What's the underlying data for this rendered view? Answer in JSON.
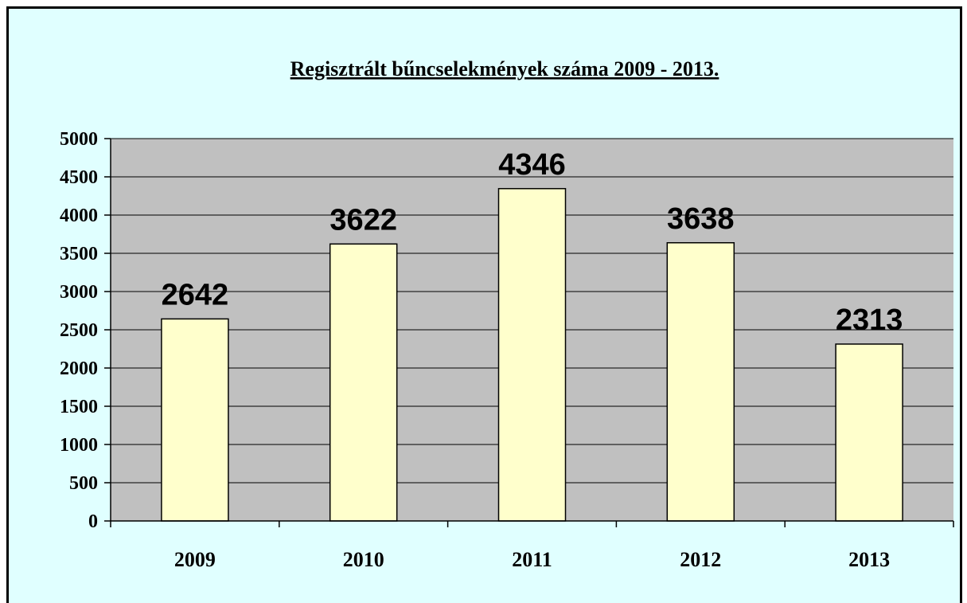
{
  "chart_data": {
    "type": "bar",
    "title": "Regisztrált bűncselekmények száma 2009 - 2013.",
    "categories": [
      "2009",
      "2010",
      "2011",
      "2012",
      "2013"
    ],
    "values": [
      2642,
      3622,
      4346,
      3638,
      2313
    ],
    "data_labels": [
      "2642",
      "3622",
      "4346",
      "3638",
      "2313"
    ],
    "ylim": [
      0,
      5000
    ],
    "yticks": [
      0,
      500,
      1000,
      1500,
      2000,
      2500,
      3000,
      3500,
      4000,
      4500,
      5000
    ],
    "xlabel": "",
    "ylabel": "",
    "grid": true,
    "legend": "none",
    "colors": {
      "background": "#e0ffff",
      "plot_area": "#c0c0c0",
      "bar_fill": "#ffffcc",
      "bar_stroke": "#000000",
      "gridline": "#000000"
    }
  }
}
